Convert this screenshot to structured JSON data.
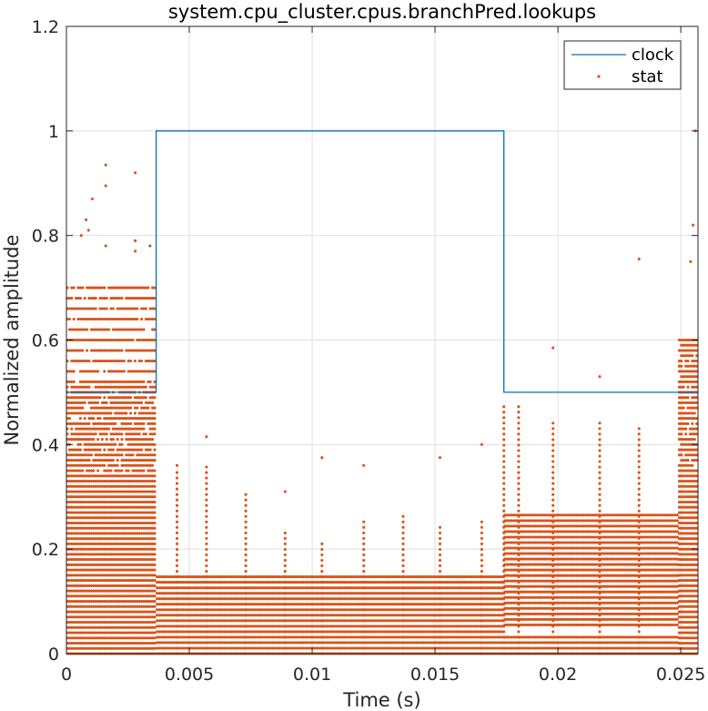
{
  "chart_data": {
    "type": "line",
    "title": "system.cpu_cluster.cpus.branchPred.lookups",
    "xlabel": "Time (s)",
    "ylabel": "Normalized amplitude",
    "xlim": [
      0,
      0.0257
    ],
    "ylim": [
      0,
      1.2
    ],
    "xticks": [
      0,
      0.005,
      0.01,
      0.015,
      0.02,
      0.025
    ],
    "xtick_labels": [
      "0",
      "0.005",
      "0.01",
      "0.015",
      "0.02",
      "0.025"
    ],
    "yticks": [
      0,
      0.2,
      0.4,
      0.6,
      0.8,
      1,
      1.2
    ],
    "ytick_labels": [
      "0",
      "0.2",
      "0.4",
      "0.6",
      "0.8",
      "1",
      "1.2"
    ],
    "grid": true,
    "legend_location": "top-right",
    "series": [
      {
        "name": "clock",
        "style": "step-line",
        "color": "#0072BD",
        "x": [
          0,
          0.00365,
          0.00365,
          0.0178,
          0.0178,
          0.0257
        ],
        "y": [
          0.5,
          0.5,
          1.0,
          1.0,
          0.5,
          0.5
        ]
      },
      {
        "name": "stat",
        "style": "dots",
        "color": "#D95319",
        "segments": [
          {
            "x_range": [
              0,
              0.00365
            ],
            "y_range": [
              0,
              0.51
            ],
            "y_step": 0.01
          },
          {
            "x_range": [
              0,
              0.00365
            ],
            "y_range": [
              0.52,
              0.7
            ],
            "y_step": 0.02
          },
          {
            "x_range": [
              0.00365,
              0.0178
            ],
            "y_range": [
              0,
              0.155
            ],
            "y_step": 0.0105
          },
          {
            "x_range": [
              0.0178,
              0.0249
            ],
            "y_range": [
              0.055,
              0.275
            ],
            "y_step": 0.0105
          },
          {
            "x_range": [
              0.0178,
              0.0249
            ],
            "y_range": [
              0,
              0.04
            ],
            "y_step": 0.0105
          },
          {
            "x_range": [
              0.0249,
              0.0257
            ],
            "y_range": [
              0,
              0.6
            ],
            "y_step": 0.01
          }
        ],
        "outliers": [
          {
            "x": 0.0016,
            "y": 0.935
          },
          {
            "x": 0.0016,
            "y": 0.895
          },
          {
            "x": 0.00105,
            "y": 0.87
          },
          {
            "x": 0.0008,
            "y": 0.83
          },
          {
            "x": 0.0028,
            "y": 0.92
          },
          {
            "x": 0.0006,
            "y": 0.8
          },
          {
            "x": 0.0009,
            "y": 0.81
          },
          {
            "x": 0.0016,
            "y": 0.78
          },
          {
            "x": 0.0028,
            "y": 0.79
          },
          {
            "x": 0.0028,
            "y": 0.77
          },
          {
            "x": 0.0034,
            "y": 0.78
          },
          {
            "x": 0.0057,
            "y": 0.415
          },
          {
            "x": 0.0045,
            "y": 0.36
          },
          {
            "x": 0.0089,
            "y": 0.31
          },
          {
            "x": 0.0104,
            "y": 0.375
          },
          {
            "x": 0.0121,
            "y": 0.36
          },
          {
            "x": 0.0152,
            "y": 0.375
          },
          {
            "x": 0.0169,
            "y": 0.4
          },
          {
            "x": 0.0198,
            "y": 0.585
          },
          {
            "x": 0.0233,
            "y": 0.755
          },
          {
            "x": 0.0217,
            "y": 0.53
          },
          {
            "x": 0.0256,
            "y": 1.0
          },
          {
            "x": 0.0255,
            "y": 0.82
          },
          {
            "x": 0.0254,
            "y": 0.75
          }
        ],
        "spikes": [
          {
            "x": 0.0045,
            "y_max": 0.35
          },
          {
            "x": 0.0057,
            "y_max": 0.36
          },
          {
            "x": 0.0073,
            "y_max": 0.31
          },
          {
            "x": 0.0089,
            "y_max": 0.24
          },
          {
            "x": 0.0104,
            "y_max": 0.22
          },
          {
            "x": 0.0121,
            "y_max": 0.26
          },
          {
            "x": 0.0137,
            "y_max": 0.27
          },
          {
            "x": 0.0152,
            "y_max": 0.25
          },
          {
            "x": 0.0169,
            "y_max": 0.26
          },
          {
            "x": 0.0178,
            "y_max": 0.48
          },
          {
            "x": 0.0184,
            "y_max": 0.48
          },
          {
            "x": 0.0198,
            "y_max": 0.45
          },
          {
            "x": 0.0217,
            "y_max": 0.45
          },
          {
            "x": 0.0233,
            "y_max": 0.44
          }
        ]
      }
    ]
  }
}
